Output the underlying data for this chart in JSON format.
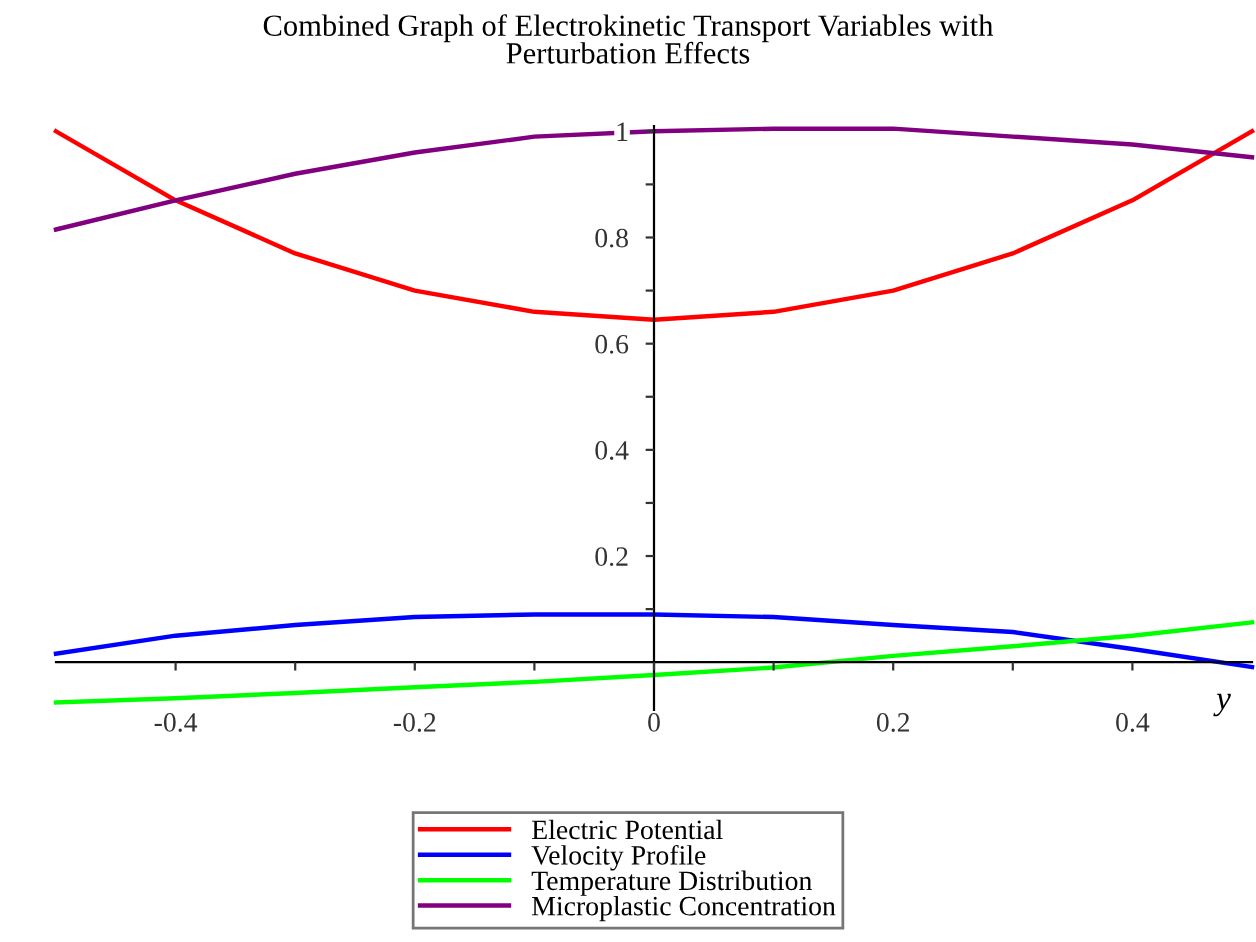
{
  "chart_data": {
    "type": "line",
    "title": "Combined Graph of Electrokinetic Transport Variables with\nPerturbation Effects",
    "xlabel": "y",
    "x": [
      -0.5,
      -0.4,
      -0.3,
      -0.2,
      -0.1,
      0,
      0.1,
      0.2,
      0.3,
      0.4,
      0.5
    ],
    "series": [
      {
        "name": "Electric Potential",
        "color": "#ff0000",
        "values": [
          1.0,
          0.87,
          0.77,
          0.7,
          0.66,
          0.645,
          0.66,
          0.7,
          0.77,
          0.87,
          1.0
        ]
      },
      {
        "name": "Velocity Profile",
        "color": "#0000ff",
        "values": [
          0.016,
          0.05,
          0.07,
          0.085,
          0.09,
          0.09,
          0.085,
          0.07,
          0.057,
          0.025,
          -0.009
        ]
      },
      {
        "name": "Temperature Distribution",
        "color": "#00ff00",
        "values": [
          -0.076,
          -0.068,
          -0.058,
          -0.047,
          -0.037,
          -0.024,
          -0.01,
          0.012,
          0.03,
          0.05,
          0.075
        ]
      },
      {
        "name": "Microplastic Concentration",
        "color": "#800080",
        "values": [
          0.815,
          0.87,
          0.92,
          0.96,
          0.99,
          1.0,
          1.005,
          1.005,
          0.99,
          0.975,
          0.951
        ]
      }
    ],
    "xlim": [
      -0.5,
      0.5
    ],
    "ylim": [
      -0.09,
      1.01
    ],
    "xticks": [
      -0.4,
      {
        "value": -0.3,
        "label": null
      },
      -0.2,
      {
        "value": -0.1,
        "label": null
      },
      0,
      {
        "value": 0.1,
        "label": null
      },
      0.2,
      {
        "value": 0.3,
        "label": null
      },
      0.4
    ],
    "yticks": [
      {
        "value": 0.1,
        "label": null
      },
      0.2,
      {
        "value": 0.3,
        "label": null
      },
      0.4,
      {
        "value": 0.5,
        "label": null
      },
      0.6,
      {
        "value": 0.7,
        "label": null
      },
      0.8,
      {
        "value": 0.9,
        "label": null
      },
      1
    ],
    "grid": false,
    "legend": "bottom",
    "marker": "none",
    "line_style": "solid"
  }
}
